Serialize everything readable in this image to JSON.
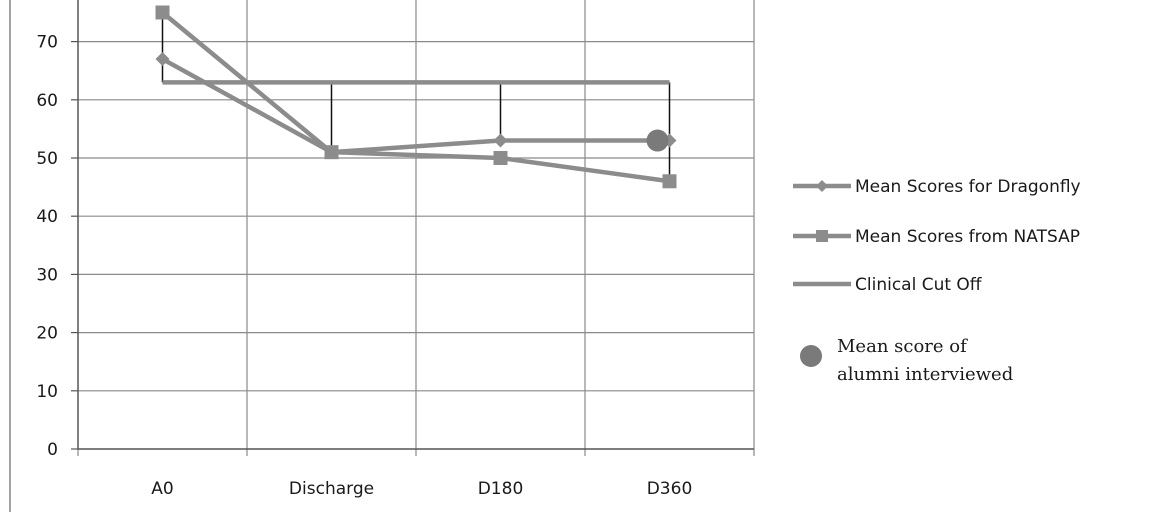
{
  "chart_data": {
    "type": "line",
    "categories": [
      "A0",
      "Discharge",
      "D180",
      "D360"
    ],
    "ylim": [
      0,
      75
    ],
    "yticks": [
      0,
      10,
      20,
      30,
      40,
      50,
      60,
      70
    ],
    "grid": true,
    "legend_position": "right",
    "series": [
      {
        "name": "Mean Scores for Dragonfly",
        "marker": "diamond",
        "values": [
          67,
          51,
          53,
          53
        ]
      },
      {
        "name": "Mean Scores from NATSAP",
        "marker": "square",
        "values": [
          75,
          51,
          50,
          46
        ]
      },
      {
        "name": "Clinical Cut Off",
        "marker": "none",
        "values": [
          63,
          63,
          63,
          63
        ]
      }
    ],
    "alumni_point": {
      "name_lines": [
        "Mean score of",
        "alumni interviewed"
      ],
      "category": "D360",
      "value": 53
    },
    "error_bars": [
      {
        "category": "A0",
        "low": 63,
        "high": 75
      },
      {
        "category": "Discharge",
        "low": 51,
        "high": 63
      },
      {
        "category": "D180",
        "low": 53,
        "high": 63
      },
      {
        "category": "D360",
        "low": 46,
        "high": 63
      }
    ],
    "colors": {
      "series": "#8c8c8c",
      "alumni": "#7a7a7a",
      "grid": "#8a8a8a",
      "axis": "#555555",
      "error_bar": "#111111"
    }
  }
}
